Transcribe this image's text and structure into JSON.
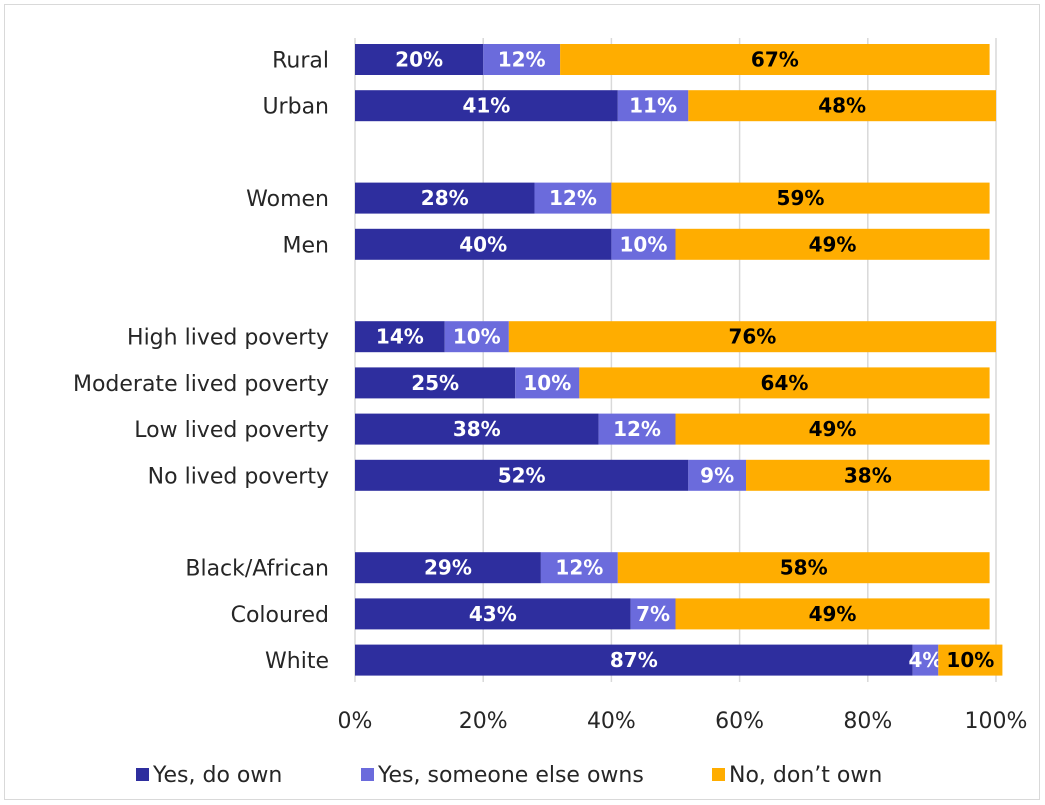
{
  "chart_data": {
    "type": "bar",
    "orientation": "horizontal",
    "stacked": true,
    "categories": [
      "Rural",
      "Urban",
      "Women",
      "Men",
      "High lived poverty",
      "Moderate lived poverty",
      "Low lived poverty",
      "No lived poverty",
      "Black/African",
      "Coloured",
      "White"
    ],
    "series": [
      {
        "name": "Yes, do own",
        "color": "#2e2e9e",
        "label_color": "#ffffff",
        "values": [
          20,
          41,
          28,
          40,
          14,
          25,
          38,
          52,
          29,
          43,
          87
        ]
      },
      {
        "name": "Yes, someone else owns",
        "color": "#6b6bdc",
        "label_color": "#ffffff",
        "values": [
          12,
          11,
          12,
          10,
          10,
          10,
          12,
          9,
          12,
          7,
          4
        ]
      },
      {
        "name": "No, don’t own",
        "color": "#ffad00",
        "label_color": "#000000",
        "values": [
          67,
          48,
          59,
          49,
          76,
          64,
          49,
          38,
          58,
          49,
          10
        ]
      }
    ],
    "value_suffix": "%",
    "xlim": [
      0,
      100
    ],
    "x_ticks": [
      "0%",
      "20%",
      "40%",
      "60%",
      "80%",
      "100%"
    ],
    "grid": true,
    "legend_position": "bottom"
  }
}
